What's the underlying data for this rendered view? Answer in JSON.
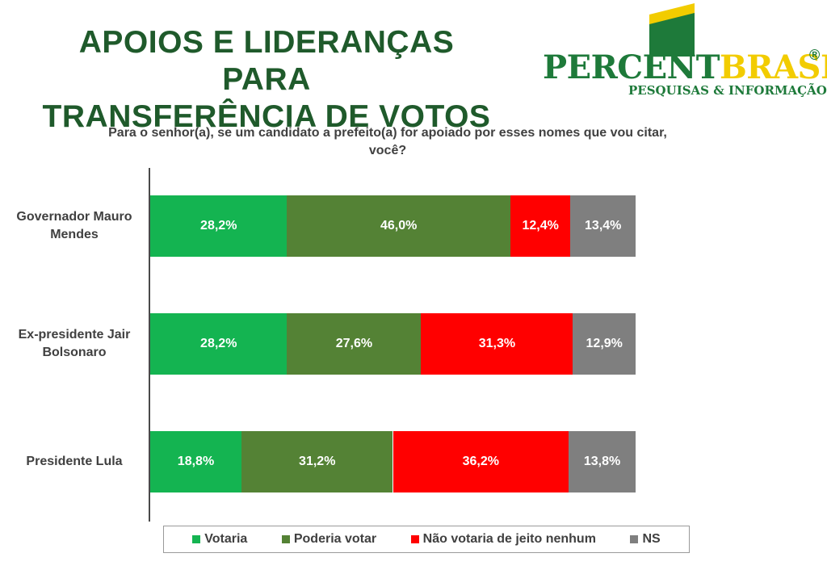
{
  "header": {
    "title_line1": "APOIOS E LIDERANÇAS PARA",
    "title_line2": "TRANSFERÊNCIA DE VOTOS"
  },
  "logo": {
    "main_part1": "PERCENT",
    "main_part2": "BRASIL",
    "registered": "®",
    "tagline": "PESQUISAS & INFORMAÇÃO"
  },
  "chart_data": {
    "type": "bar",
    "orientation": "horizontal",
    "stacked": true,
    "subtitle": "Para o senhor(a), se um candidato a prefeito(a) for apoiado por esses nomes que vou citar, você?",
    "categories": [
      "Governador Mauro Mendes",
      "Ex-presidente Jair Bolsonaro",
      "Presidente Lula"
    ],
    "series": [
      {
        "name": "Votaria",
        "color": "#14b451",
        "values": [
          28.2,
          28.2,
          18.8
        ],
        "labels": [
          "28,2%",
          "28,2%",
          "18,8%"
        ]
      },
      {
        "name": "Poderia votar",
        "color": "#548235",
        "values": [
          46.0,
          27.6,
          31.2
        ],
        "labels": [
          "46,0%",
          "27,6%",
          "31,2%"
        ]
      },
      {
        "name": "Não votaria de jeito nenhum",
        "color": "#ff0000",
        "values": [
          12.4,
          31.3,
          36.2
        ],
        "labels": [
          "12,4%",
          "31,3%",
          "36,2%"
        ]
      },
      {
        "name": "NS",
        "color": "#7f7f7f",
        "values": [
          13.4,
          12.9,
          13.8
        ],
        "labels": [
          "13,4%",
          "12,9%",
          "13,8%"
        ]
      }
    ],
    "legend_position": "bottom",
    "grid": false
  }
}
